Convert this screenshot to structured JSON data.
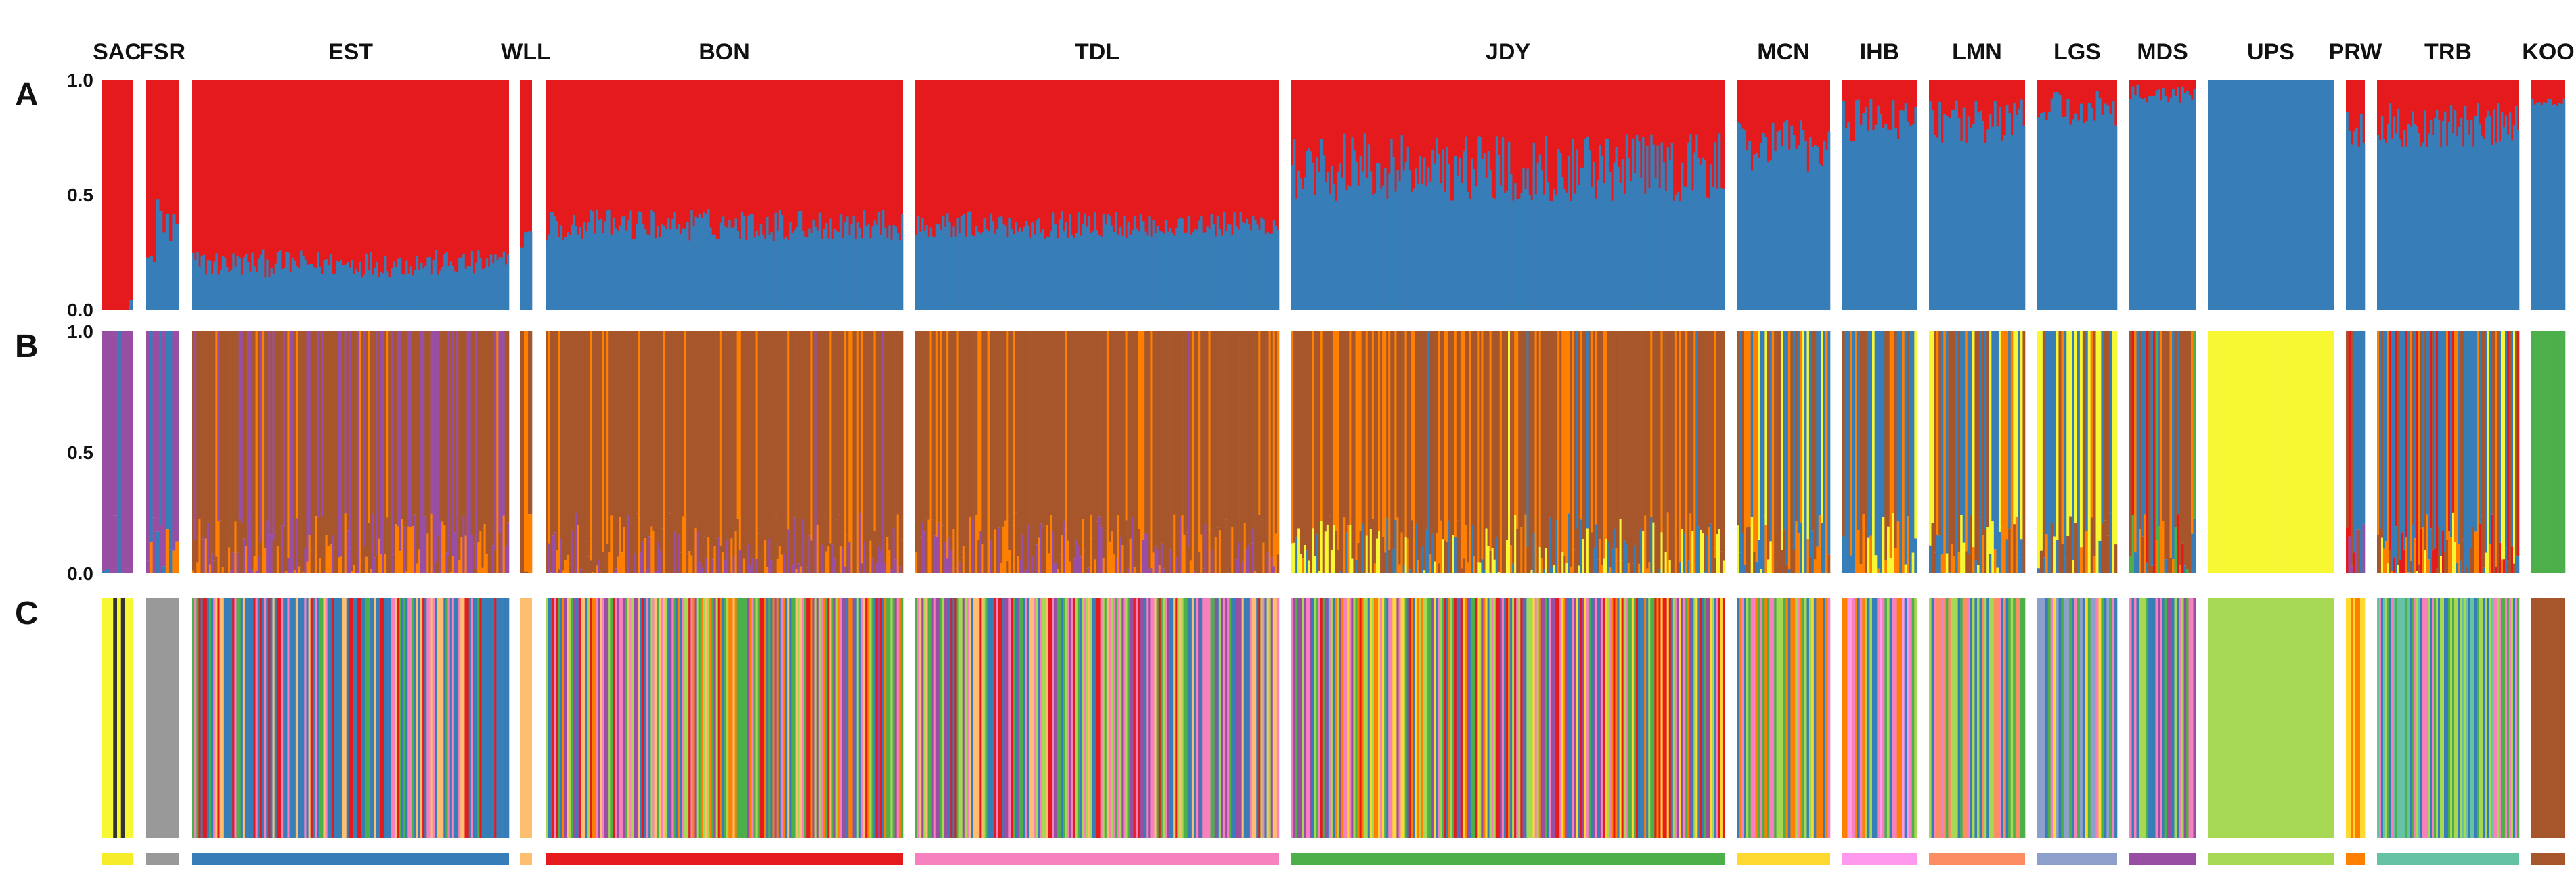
{
  "chart_data": {
    "type": "stacked-bar-structure",
    "title": "",
    "populations": [
      {
        "code": "SAC",
        "n": 8,
        "a_blue": 0.04,
        "a_var": 0.03,
        "b_mix": "SAC",
        "c_color": "#f7ec2a"
      },
      {
        "code": "FSR",
        "n": 10,
        "a_blue": 0.35,
        "a_var": 0.15,
        "b_mix": "FSR",
        "c_color": "#999999"
      },
      {
        "code": "EST",
        "n": 150,
        "a_blue": 0.2,
        "a_var": 0.06,
        "b_mix": "EST",
        "c_color": "#377eb8"
      },
      {
        "code": "WLL",
        "n": 3,
        "a_blue": 0.3,
        "a_var": 0.05,
        "b_mix": "WLL",
        "c_color": "#fdbf6f"
      },
      {
        "code": "BON",
        "n": 170,
        "a_blue": 0.37,
        "a_var": 0.07,
        "b_mix": "BON",
        "c_color": "#e41a1c"
      },
      {
        "code": "TDL",
        "n": 175,
        "a_blue": 0.37,
        "a_var": 0.06,
        "b_mix": "TDL",
        "c_color": "#f781bf"
      },
      {
        "code": "JDY",
        "n": 210,
        "a_blue": 0.62,
        "a_var": 0.15,
        "b_mix": "JDY",
        "c_color": "#4daf4a"
      },
      {
        "code": "MCN",
        "n": 40,
        "a_blue": 0.72,
        "a_var": 0.12,
        "b_mix": "MCN",
        "c_color": "#ffd92f"
      },
      {
        "code": "IHB",
        "n": 30,
        "a_blue": 0.82,
        "a_var": 0.1,
        "b_mix": "IHB",
        "c_color": "#ff99ee"
      },
      {
        "code": "LMN",
        "n": 40,
        "a_blue": 0.82,
        "a_var": 0.1,
        "b_mix": "LMN",
        "c_color": "#fc8d62"
      },
      {
        "code": "LGS",
        "n": 30,
        "a_blue": 0.88,
        "a_var": 0.08,
        "b_mix": "LGS",
        "c_color": "#8da0cb"
      },
      {
        "code": "MDS",
        "n": 28,
        "a_blue": 0.94,
        "a_var": 0.05,
        "b_mix": "MDS",
        "c_color": "#984ea3"
      },
      {
        "code": "UPS",
        "n": 60,
        "a_blue": 1.0,
        "a_var": 0.0,
        "b_mix": "UPS",
        "c_color": "#a6d854"
      },
      {
        "code": "PRW",
        "n": 8,
        "a_blue": 0.78,
        "a_var": 0.08,
        "b_mix": "PRW",
        "c_color": "#ff7f00"
      },
      {
        "code": "TRB",
        "n": 70,
        "a_blue": 0.8,
        "a_var": 0.1,
        "b_mix": "TRB",
        "c_color": "#66c2a5"
      },
      {
        "code": "KOO",
        "n": 15,
        "a_blue": 0.9,
        "a_var": 0.02,
        "b_mix": "KOO",
        "c_color": "#a6562a"
      }
    ],
    "panels": [
      {
        "letter": "A",
        "k": 2,
        "ticks": [
          "1.0",
          "0.5",
          "0.0"
        ],
        "ylim": [
          0,
          1
        ]
      },
      {
        "letter": "B",
        "k": 6,
        "ticks": [
          "1.0",
          "0.5",
          "0.0"
        ],
        "ylim": [
          0,
          1
        ]
      },
      {
        "letter": "C",
        "k": "individual",
        "ticks": []
      }
    ],
    "colors": {
      "red": "#e41a1c",
      "blue": "#377eb8",
      "purple": "#984ea3",
      "brown": "#a6562a",
      "orange": "#ff7f00",
      "yellow": "#f7f733",
      "green": "#4daf4a",
      "pink": "#f781bf",
      "grey": "#999999"
    }
  }
}
